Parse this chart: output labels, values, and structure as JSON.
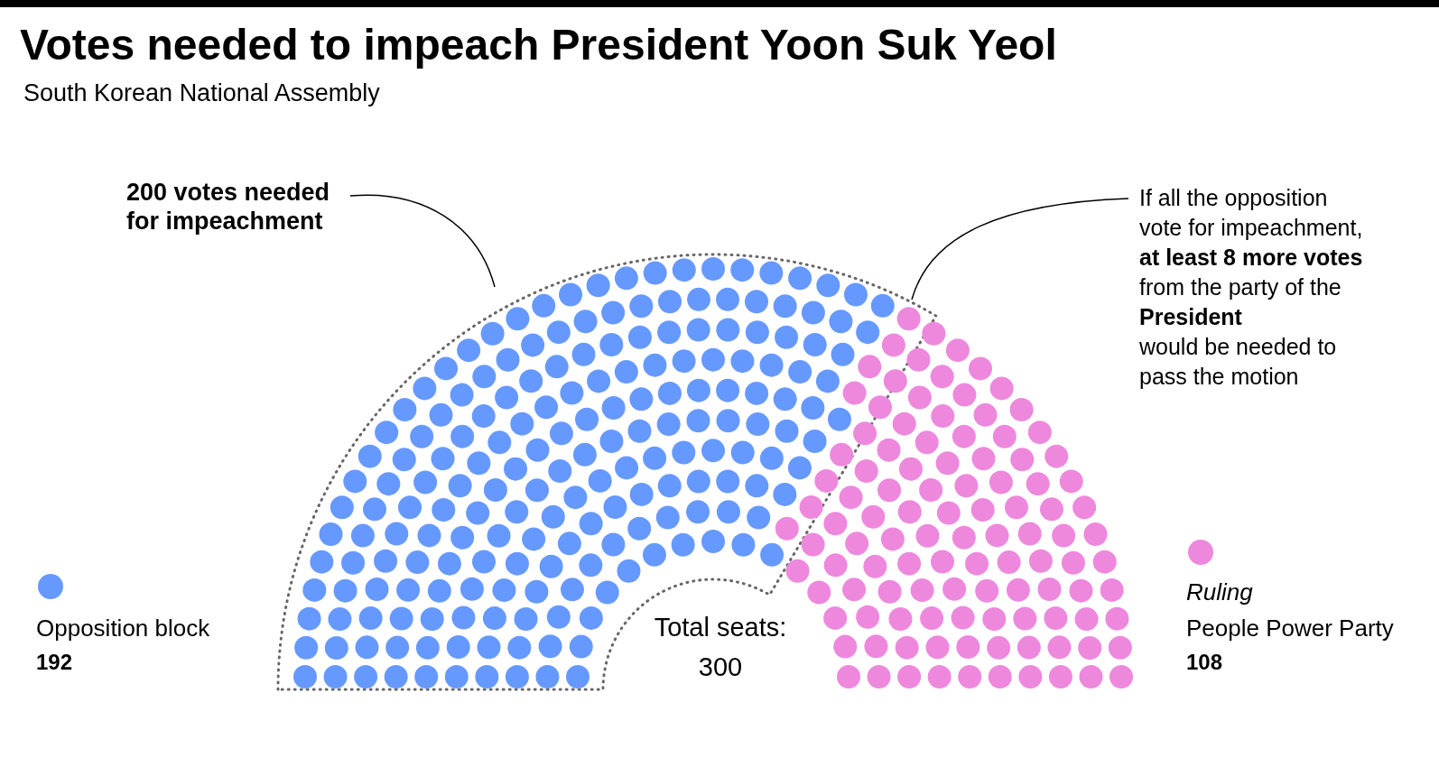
{
  "chart_data": {
    "type": "other",
    "title": "Votes needed to impeach President Yoon Suk Yeol",
    "subtitle": "South Korean National Assembly",
    "categories": [
      "Opposition block",
      "People Power Party"
    ],
    "values": [
      192,
      108
    ],
    "data_labels": true,
    "colors": [
      "#6699ff",
      "#ee88dd"
    ],
    "annotations": [
      "200 votes needed\nfor impeachment",
      "If all the opposition\nvote for impeachment,\nat least 8 more votes\nfrom  the party of the\nPresident\nwould be needed to\npass the motion",
      "Total seats:\n300",
      "Ruling"
    ]
  }
}
